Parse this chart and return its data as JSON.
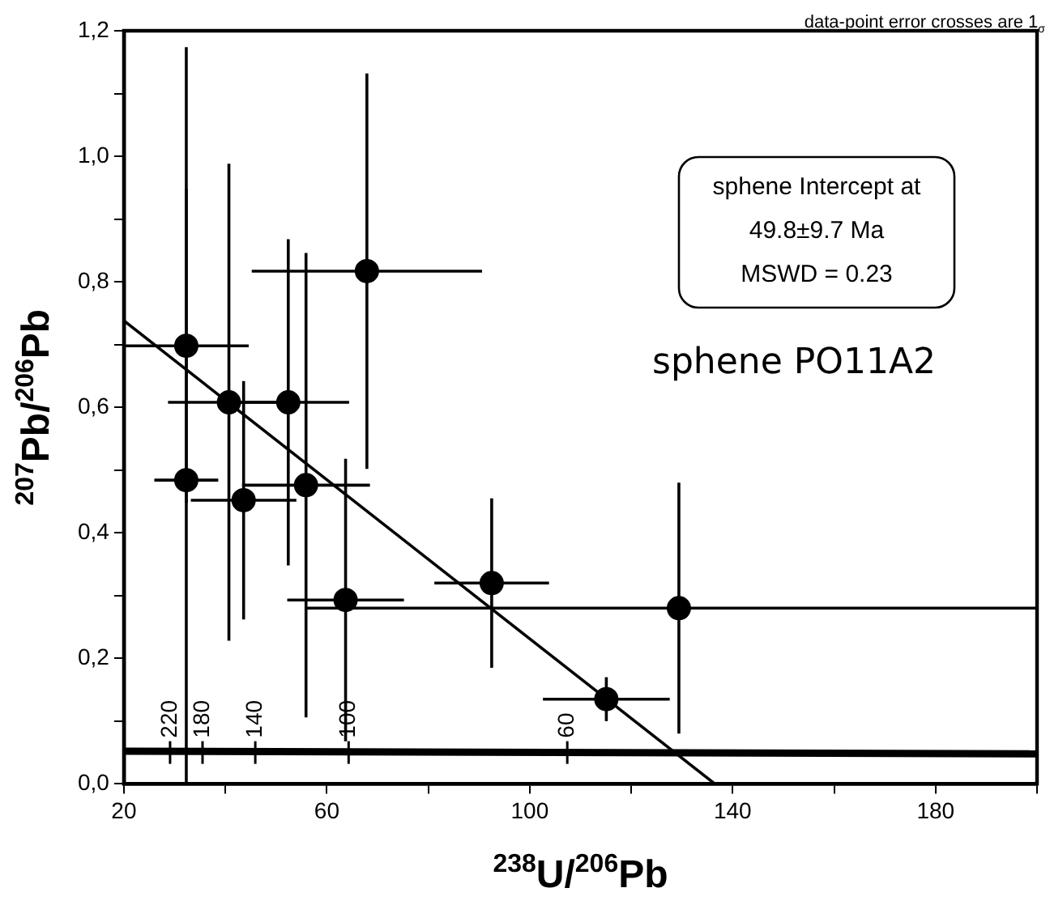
{
  "chart_data": {
    "type": "scatter",
    "xlabel": "$^{238}$U/$^{206}$Pb",
    "ylabel": "$^{207}$Pb/$^{206}$Pb",
    "xlim": [
      20,
      200
    ],
    "xticks": [
      20,
      {
        "value": 40,
        "label": null
      },
      60,
      {
        "value": 80,
        "label": null
      },
      100,
      {
        "value": 120,
        "label": null
      },
      140,
      {
        "value": 160,
        "label": null
      },
      180,
      {
        "value": 200,
        "label": null
      }
    ],
    "ylim": [
      0,
      1.2
    ],
    "yticks": [
      {
        "value": 0,
        "label": "0,0"
      },
      {
        "value": 0.1,
        "label": null
      },
      {
        "value": 0.2,
        "label": "0,2"
      },
      {
        "value": 0.3,
        "label": null
      },
      {
        "value": 0.4,
        "label": "0,4"
      },
      {
        "value": 0.5,
        "label": null
      },
      {
        "value": 0.6,
        "label": "0,6"
      },
      {
        "value": 0.7,
        "label": null
      },
      {
        "value": 0.8,
        "label": "0,8"
      },
      {
        "value": 0.9,
        "label": null
      },
      {
        "value": 1.0,
        "label": "1,0"
      },
      {
        "value": 1.1,
        "label": null
      },
      {
        "value": 1.2,
        "label": "1,2"
      }
    ],
    "grid": false,
    "legend": false,
    "marker": "circle",
    "series": [
      {
        "type": "line",
        "marker": "none",
        "color": "#000000",
        "x": [
          20,
          200
        ],
        "values": [
          0.052,
          0.048
        ]
      },
      {
        "type": "line",
        "marker": "none",
        "color": "#000000",
        "x": [
          20,
          136.5
        ],
        "values": [
          0.738,
          0
        ]
      },
      {
        "color": "#000000",
        "x": [
          32.3,
          32.3,
          40.7,
          52.4,
          67.9,
          43.6,
          55.9,
          63.7,
          92.5,
          129.4,
          115.1
        ],
        "values": [
          0.698,
          0.484,
          0.608,
          0.608,
          0.817,
          0.452,
          0.476,
          0.293,
          0.32,
          0.28,
          0.135
        ],
        "errors": [
          0.25,
          [
            0,
            1.174
          ],
          0.38,
          0.26,
          0.315,
          0.19,
          0.37,
          0.225,
          0.135,
          0.2,
          0.035
        ],
        "xerrors": [
          12.3,
          6.3,
          12,
          12,
          22.7,
          10.4,
          12.6,
          11.5,
          11.3,
          [
            55.9,
            199.9
          ],
          12.5
        ]
      }
    ],
    "annotations": [
      "data-point error crosses are 1$_{σ}$",
      "sphene Intercept at\n49.8±9.7 Ma\nMSWD = 0.23",
      "sphene PO11A2",
      {
        "text": "220",
        "x": 29.1,
        "y": 0.05
      },
      {
        "text": "180",
        "x": 35.5,
        "y": 0.05
      },
      {
        "text": "140",
        "x": 45.9,
        "y": 0.05
      },
      {
        "text": "100",
        "x": 64.3,
        "y": 0.05
      },
      {
        "text": "60",
        "x": 107.4,
        "y": 0.05
      }
    ]
  }
}
